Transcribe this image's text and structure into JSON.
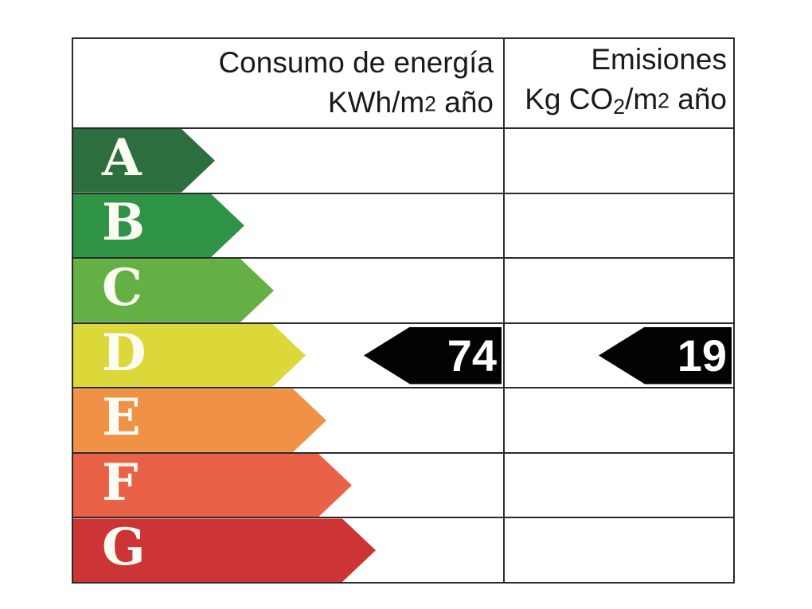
{
  "header": {
    "consumo": {
      "line1": "Consumo de energía",
      "line2_prefix": "KWh/m",
      "line2_sup": "2",
      "line2_suffix": " año"
    },
    "emisiones": {
      "line1": "Emisiones",
      "line2_part1": "Kg CO",
      "line2_sub": "2",
      "line2_part2": "/m",
      "line2_sup": "2",
      "line2_suffix": " año"
    }
  },
  "scale": {
    "ratings": [
      {
        "letter": "A",
        "color": "#2d6e3e",
        "arrow_width": 178
      },
      {
        "letter": "B",
        "color": "#2e9344",
        "arrow_width": 215
      },
      {
        "letter": "C",
        "color": "#64b045",
        "arrow_width": 252
      },
      {
        "letter": "D",
        "color": "#dcd839",
        "arrow_width": 292
      },
      {
        "letter": "E",
        "color": "#f09246",
        "arrow_width": 318
      },
      {
        "letter": "F",
        "color": "#e96248",
        "arrow_width": 350
      },
      {
        "letter": "G",
        "color": "#cd3435",
        "arrow_width": 380
      }
    ]
  },
  "indicators": {
    "rating": "D",
    "consumo_value": "74",
    "emisiones_value": "19",
    "arrow_color": "#030303",
    "value_color": "#ffffff"
  },
  "colors": {
    "grid_border": "#2b2b2b",
    "header_text": "#1a1a1a",
    "letter_text": "#fdfcf3",
    "background": "#ffffff"
  },
  "chart_data": {
    "type": "table",
    "title": "Etiqueta de eficiencia energética (escala A-G)",
    "categories": [
      "A",
      "B",
      "C",
      "D",
      "E",
      "F",
      "G"
    ],
    "columns": [
      "Consumo de energía KWh/m2 año",
      "Emisiones Kg CO2/m2 año"
    ],
    "assigned_rating": "D",
    "values": {
      "consumo_de_energia_kwh_m2_ano": 74,
      "emisiones_kg_co2_m2_ano": 19
    },
    "legend_position": "none",
    "grid": true
  }
}
